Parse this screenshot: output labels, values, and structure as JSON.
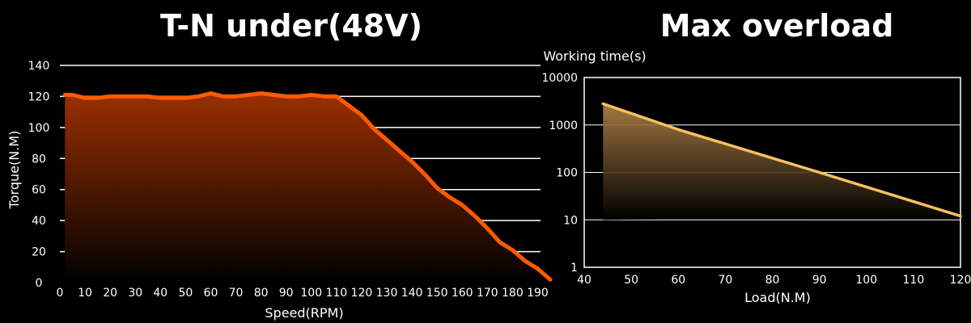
{
  "chart_data": [
    {
      "type": "area",
      "title": "T-N under(48V)",
      "xlabel": "Speed(RPM)",
      "ylabel": "Torque(N.M)",
      "xlim": [
        0,
        195
      ],
      "ylim": [
        0,
        140
      ],
      "x_ticks": [
        0,
        10,
        20,
        30,
        40,
        50,
        60,
        70,
        80,
        90,
        100,
        110,
        120,
        130,
        140,
        150,
        160,
        170,
        180,
        190
      ],
      "y_ticks": [
        0,
        20,
        40,
        60,
        80,
        100,
        120,
        140
      ],
      "grid": true,
      "color": "#ff5a00",
      "series": [
        {
          "x": [
            2,
            5,
            10,
            15,
            20,
            25,
            30,
            35,
            40,
            45,
            50,
            55,
            60,
            65,
            70,
            75,
            80,
            85,
            90,
            95,
            100,
            105,
            110,
            115,
            120,
            125,
            130,
            135,
            140,
            145,
            150,
            155,
            160,
            165,
            170,
            175,
            180,
            185,
            190,
            195
          ],
          "values": [
            121,
            121,
            119,
            119,
            120,
            120,
            120,
            120,
            119,
            119,
            119,
            120,
            122,
            120,
            120,
            121,
            122,
            121,
            120,
            120,
            121,
            120,
            120,
            114,
            108,
            99,
            92,
            85,
            78,
            70,
            61,
            55,
            50,
            43,
            35,
            26,
            21,
            14,
            9,
            2
          ]
        }
      ]
    },
    {
      "type": "area",
      "title": "Max overload",
      "xlabel": "Load(N.M)",
      "ylabel": "Working time(s)",
      "xlim": [
        40,
        120
      ],
      "ylim": [
        1,
        10000
      ],
      "yscale": "log",
      "x_ticks": [
        40,
        50,
        60,
        70,
        80,
        90,
        100,
        110,
        120
      ],
      "y_ticks": [
        1,
        10,
        100,
        1000,
        10000
      ],
      "grid": true,
      "color": "#f5c060",
      "series": [
        {
          "x": [
            44,
            60,
            80,
            90,
            120
          ],
          "values": [
            2800,
            800,
            200,
            100,
            12
          ]
        }
      ]
    }
  ]
}
